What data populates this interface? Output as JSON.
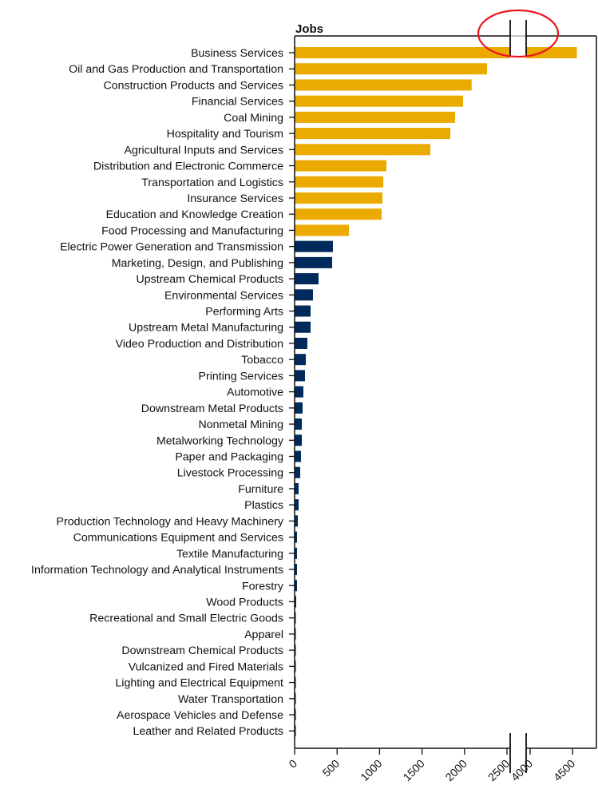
{
  "chart_data": {
    "type": "bar",
    "orientation": "horizontal",
    "title": "Jobs",
    "xlabel": "",
    "ylabel": "",
    "xlim": [
      0,
      4700
    ],
    "axis_break": [
      2550,
      3950
    ],
    "x_ticks": [
      0,
      500,
      1000,
      1500,
      2000,
      2500,
      4000,
      4500
    ],
    "grid": false,
    "colors": {
      "highlight": "#EAAA00",
      "other": "#002A5C",
      "annotation": "#E8171F"
    },
    "highlight_count": 12,
    "categories": [
      "Business Services",
      "Oil and Gas Production and Transportation",
      "Construction Products and Services",
      "Financial Services",
      "Coal Mining",
      "Hospitality and Tourism",
      "Agricultural Inputs and Services",
      "Distribution and Electronic Commerce",
      "Transportation and Logistics",
      "Insurance Services",
      "Education and Knowledge Creation",
      "Food Processing and Manufacturing",
      "Electric Power Generation and Transmission",
      "Marketing, Design, and Publishing",
      "Upstream Chemical Products",
      "Environmental Services",
      "Performing Arts",
      "Upstream Metal Manufacturing",
      "Video Production and Distribution",
      "Tobacco",
      "Printing Services",
      "Automotive",
      "Downstream Metal Products",
      "Nonmetal Mining",
      "Metalworking Technology",
      "Paper and Packaging",
      "Livestock Processing",
      "Furniture",
      "Plastics",
      "Production Technology and Heavy Machinery",
      "Communications Equipment and Services",
      "Textile Manufacturing",
      "Information Technology and Analytical Instruments",
      "Forestry",
      "Wood Products",
      "Recreational and Small Electric Goods",
      "Apparel",
      "Downstream Chemical Products",
      "Vulcanized and Fired Materials",
      "Lighting and Electrical Equipment",
      "Water Transportation",
      "Aerospace Vehicles and Defense",
      "Leather and Related Products"
    ],
    "values": [
      4550,
      2265,
      2084,
      1983,
      1889,
      1833,
      1598,
      1081,
      1043,
      1034,
      1024,
      639,
      451,
      442,
      282,
      216,
      188,
      188,
      150,
      132,
      122,
      103,
      94,
      85,
      85,
      75,
      66,
      47,
      47,
      38,
      28,
      28,
      28,
      28,
      19,
      14,
      9,
      8,
      8,
      7,
      5,
      5,
      4
    ]
  }
}
